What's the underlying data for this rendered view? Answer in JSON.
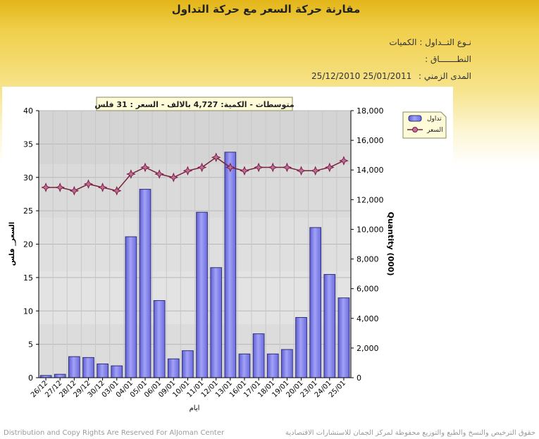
{
  "header": {
    "title": "مقارنة حركة السعر مع حركة التداول",
    "trade_type_label": "نـوع التــداول :",
    "trade_type_value": "الكميات",
    "range_label": "النطـــــــاق :",
    "period_label": "المدى الزمني :",
    "period_value": "25/01/2011 25/12/2010"
  },
  "footer": {
    "left": "Distribution and Copy Rights Are Reserved For AlJoman Center",
    "right": "حقوق الترخيص والنسخ والطبع والتوزيع محفوظة لمركز الجمان للاستشارات الاقتصادية"
  },
  "colors": {
    "bar_fill": "#8c8cf0",
    "bar_stroke": "#303078",
    "line": "#7a1f3a",
    "marker": "#c070a0",
    "plot_bg": "#d4d4d4"
  },
  "chart_data": {
    "type": "bar+line",
    "banner": "متوسطات - الكمية: 4,727 بالالف  - السعر : 31 فلس",
    "xlabel": "ايام",
    "ylabel_left": "السعر_ فلس",
    "ylabel_right": "Quantity (000)",
    "categories": [
      "26/12",
      "27/12",
      "28/12",
      "29/12",
      "30/12",
      "03/01",
      "04/01",
      "05/01",
      "06/01",
      "09/01",
      "10/01",
      "11/01",
      "12/01",
      "13/01",
      "16/01",
      "17/01",
      "18/01",
      "19/01",
      "20/01",
      "23/01",
      "24/01",
      "25/01"
    ],
    "ylim_left": [
      0,
      40
    ],
    "yticks_left": [
      "0",
      "5",
      "10",
      "15",
      "20",
      "25",
      "30",
      "35",
      "40"
    ],
    "ylim_right": [
      0,
      18000
    ],
    "yticks_right": [
      "0",
      "2,000",
      "4,000",
      "6,000",
      "8,000",
      "10,000",
      "12,000",
      "14,000",
      "16,000",
      "18,000"
    ],
    "grid": true,
    "legend_position": "top-right",
    "series": [
      {
        "name": "تداول",
        "type": "bar",
        "axis": "right",
        "values": [
          150,
          230,
          1420,
          1360,
          930,
          800,
          9500,
          12700,
          5200,
          1270,
          1820,
          11150,
          7420,
          15200,
          1600,
          2960,
          1600,
          1900,
          4060,
          10120,
          6960,
          5380
        ]
      },
      {
        "name": "السعر",
        "type": "line",
        "axis": "left",
        "values": [
          28.5,
          28.5,
          28.0,
          29.0,
          28.5,
          28.0,
          30.5,
          31.5,
          30.5,
          30.0,
          31.0,
          31.5,
          33.0,
          31.5,
          31.0,
          31.5,
          31.5,
          31.5,
          31.0,
          31.0,
          31.5,
          32.5
        ]
      }
    ]
  }
}
